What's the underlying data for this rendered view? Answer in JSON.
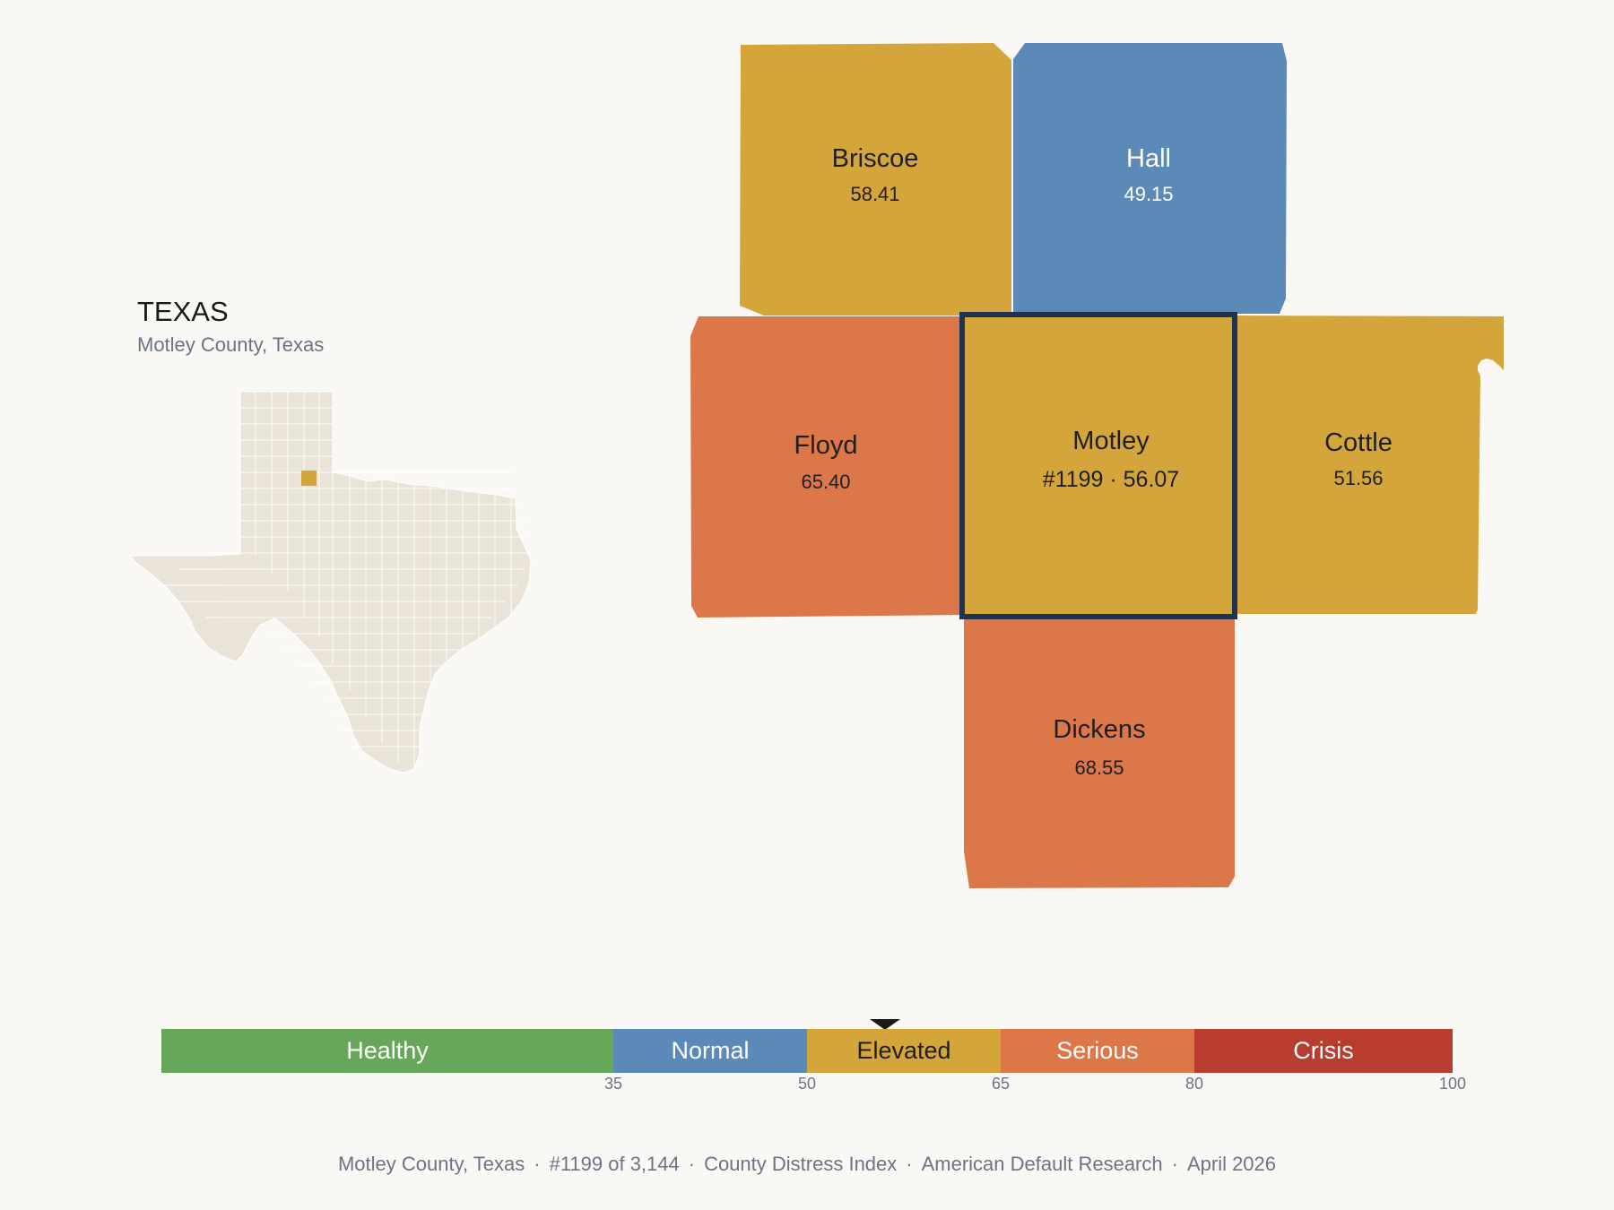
{
  "state": {
    "title": "TEXAS",
    "subtitle": "Motley County, Texas"
  },
  "colors": {
    "healthy": "#67a75a",
    "normal": "#5b89b8",
    "elevated": "#d3a53b",
    "serious": "#dc774a",
    "crisis": "#b93d2e",
    "highlight_border": "#1f3350",
    "state_fill": "#e9e3d8"
  },
  "counties": [
    {
      "id": "briscoe",
      "name": "Briscoe",
      "value": "58.41",
      "category": "elevated"
    },
    {
      "id": "hall",
      "name": "Hall",
      "value": "49.15",
      "category": "normal"
    },
    {
      "id": "floyd",
      "name": "Floyd",
      "value": "65.40",
      "category": "serious"
    },
    {
      "id": "motley",
      "name": "Motley",
      "value": "#1199 · 56.07",
      "category": "elevated",
      "selected": true
    },
    {
      "id": "cottle",
      "name": "Cottle",
      "value": "51.56",
      "category": "elevated"
    },
    {
      "id": "dickens",
      "name": "Dickens",
      "value": "68.55",
      "category": "serious"
    }
  ],
  "legend": {
    "segments": [
      {
        "label": "Healthy",
        "from": 0,
        "to": 35,
        "color": "#67a75a",
        "text_color": "#ffffff"
      },
      {
        "label": "Normal",
        "from": 35,
        "to": 50,
        "color": "#5b89b8",
        "text_color": "#ffffff"
      },
      {
        "label": "Elevated",
        "from": 50,
        "to": 65,
        "color": "#d3a53b",
        "text_color": "#1f1f1f"
      },
      {
        "label": "Serious",
        "from": 65,
        "to": 80,
        "color": "#dc774a",
        "text_color": "#ffffff"
      },
      {
        "label": "Crisis",
        "from": 80,
        "to": 100,
        "color": "#b93d2e",
        "text_color": "#ffffff"
      }
    ],
    "ticks": [
      "35",
      "50",
      "65",
      "80",
      "100"
    ],
    "marker_value": 56.07
  },
  "footer": {
    "county": "Motley County, Texas",
    "rank": "#1199 of 3,144",
    "index": "County Distress Index",
    "source": "American Default Research",
    "date": "April 2026"
  }
}
